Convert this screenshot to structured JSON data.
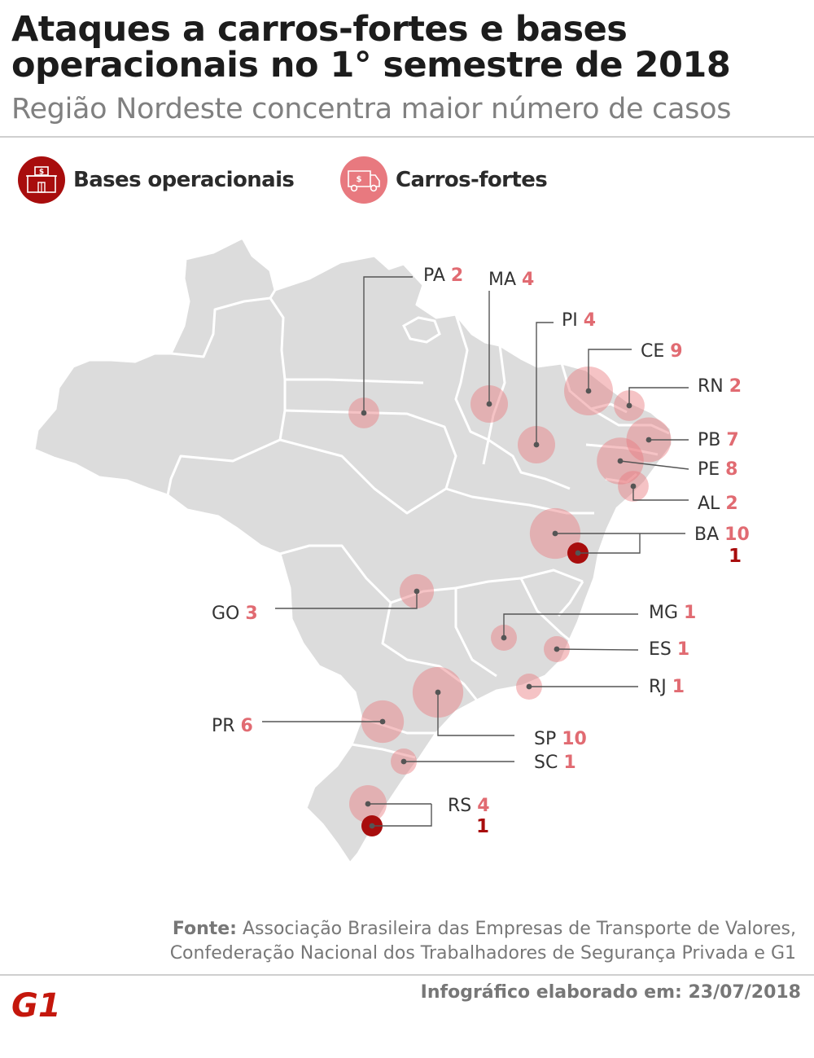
{
  "title": "Ataques a carros-fortes e bases operacionais no 1° semestre de 2018",
  "subtitle": "Região Nordeste concentra maior número de casos",
  "legend": {
    "bases_label": "Bases operacionais",
    "carros_label": "Carros-fortes",
    "bases_icon": "bank-building-icon",
    "carros_icon": "armored-truck-icon"
  },
  "colors": {
    "bases": "#a80d0d",
    "carros": "#e8797f",
    "carros_value": "#e16b72",
    "map_fill": "#dcdcdc",
    "map_border": "#ffffff"
  },
  "chart_data": {
    "type": "map",
    "series": [
      {
        "name": "Carros-fortes"
      },
      {
        "name": "Bases operacionais"
      }
    ],
    "states": [
      {
        "uf": "PA",
        "carros": 2
      },
      {
        "uf": "MA",
        "carros": 4
      },
      {
        "uf": "PI",
        "carros": 4
      },
      {
        "uf": "CE",
        "carros": 9
      },
      {
        "uf": "RN",
        "carros": 2
      },
      {
        "uf": "PB",
        "carros": 7
      },
      {
        "uf": "PE",
        "carros": 8
      },
      {
        "uf": "AL",
        "carros": 2
      },
      {
        "uf": "BA",
        "carros": 10,
        "bases": 1
      },
      {
        "uf": "GO",
        "carros": 3
      },
      {
        "uf": "MG",
        "carros": 1
      },
      {
        "uf": "ES",
        "carros": 1
      },
      {
        "uf": "RJ",
        "carros": 1
      },
      {
        "uf": "SP",
        "carros": 10
      },
      {
        "uf": "PR",
        "carros": 6
      },
      {
        "uf": "SC",
        "carros": 1
      },
      {
        "uf": "RS",
        "carros": 4,
        "bases": 1
      }
    ]
  },
  "footer": {
    "source_label": "Fonte:",
    "source_line1": "Associação Brasileira das Empresas de Transporte de Valores,",
    "source_line2": "Confederação Nacional dos Trabalhadores de Segurança Privada e G1",
    "date_text": "Infográfico elaborado em: 23/07/2018",
    "logo_text": "G1"
  }
}
